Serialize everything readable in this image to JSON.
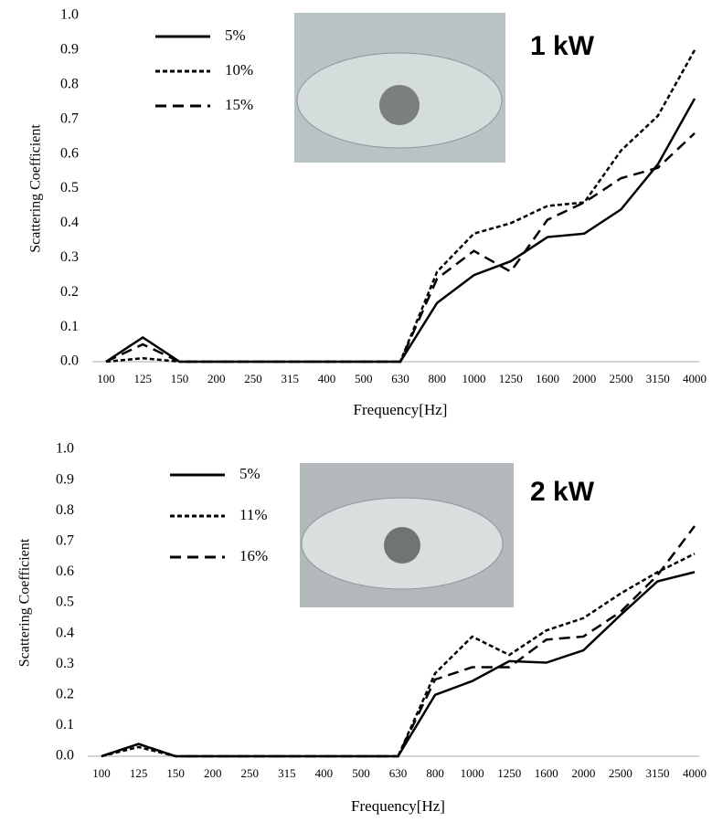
{
  "chart_data": [
    {
      "type": "line",
      "annotation": "1 kW",
      "xlabel": "Frequency[Hz]",
      "ylabel": "Scattering  Coefficient",
      "categories": [
        "100",
        "125",
        "150",
        "200",
        "250",
        "315",
        "400",
        "500",
        "630",
        "800",
        "1000",
        "1250",
        "1600",
        "2000",
        "2500",
        "3150",
        "4000"
      ],
      "ylim": [
        0,
        1
      ],
      "yticks": [
        {
          "value": 0,
          "label": "0.0"
        },
        0.1,
        0.2,
        0.3,
        0.4,
        0.5,
        0.6,
        0.7,
        0.8,
        0.9,
        {
          "value": 1,
          "label": "1.0"
        }
      ],
      "grid": false,
      "series": [
        {
          "name": "5%",
          "color": "#000000",
          "dash": "solid",
          "values": [
            0,
            0.07,
            0,
            0,
            0,
            0,
            0,
            0,
            0,
            0.17,
            0.25,
            0.29,
            0.36,
            0.37,
            0.44,
            0.57,
            0.76
          ]
        },
        {
          "name": "10%",
          "color": "#000000",
          "dash": "dotted",
          "values": [
            0,
            0.01,
            0,
            0,
            0,
            0,
            0,
            0,
            0,
            0.26,
            0.37,
            0.4,
            0.45,
            0.46,
            0.61,
            0.71,
            0.9
          ]
        },
        {
          "name": "15%",
          "color": "#000000",
          "dash": "dashed",
          "values": [
            0,
            0.05,
            0,
            0,
            0,
            0,
            0,
            0,
            0,
            0.24,
            0.32,
            0.26,
            0.41,
            0.46,
            0.53,
            0.56,
            0.66
          ]
        }
      ]
    },
    {
      "type": "line",
      "annotation": "2 kW",
      "xlabel": "Frequency[Hz]",
      "ylabel": "Scattering  Coefficient",
      "categories": [
        "100",
        "125",
        "150",
        "200",
        "250",
        "315",
        "400",
        "500",
        "630",
        "800",
        "1000",
        "1250",
        "1600",
        "2000",
        "2500",
        "3150",
        "4000"
      ],
      "ylim": [
        0,
        1
      ],
      "yticks": [
        {
          "value": 0,
          "label": "0.0"
        },
        0.1,
        0.2,
        0.3,
        0.4,
        0.5,
        0.6,
        0.7,
        0.8,
        0.9,
        {
          "value": 1,
          "label": "1.0"
        }
      ],
      "grid": false,
      "series": [
        {
          "name": "5%",
          "color": "#000000",
          "dash": "solid",
          "values": [
            0,
            0.04,
            0,
            0,
            0,
            0,
            0,
            0,
            0,
            0.2,
            0.245,
            0.31,
            0.305,
            0.345,
            0.46,
            0.57,
            0.6
          ]
        },
        {
          "name": "11%",
          "color": "#000000",
          "dash": "dotted",
          "values": [
            0,
            0.03,
            0,
            0,
            0,
            0,
            0,
            0,
            0,
            0.27,
            0.39,
            0.33,
            0.41,
            0.45,
            0.53,
            0.6,
            0.66
          ]
        },
        {
          "name": "16%",
          "color": "#000000",
          "dash": "dashed",
          "values": [
            0,
            0.04,
            0,
            0,
            0,
            0,
            0,
            0,
            0,
            0.25,
            0.29,
            0.29,
            0.38,
            0.39,
            0.47,
            0.59,
            0.75
          ]
        }
      ]
    }
  ]
}
